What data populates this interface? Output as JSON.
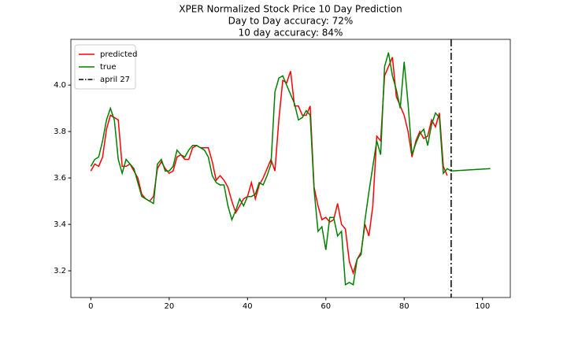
{
  "chart_data": {
    "type": "line",
    "title": "XPER Normalized Stock Price 10 Day Prediction",
    "subtitles": [
      "Day to Day accuracy: 72%",
      "10 day accuracy: 84%"
    ],
    "series": [
      {
        "name": "predicted",
        "color": "#ff0000",
        "x": [
          0,
          1,
          2,
          3,
          4,
          5,
          6,
          7,
          8,
          9,
          10,
          11,
          12,
          13,
          14,
          15,
          16,
          17,
          18,
          19,
          20,
          21,
          22,
          23,
          24,
          25,
          26,
          27,
          28,
          29,
          30,
          31,
          32,
          33,
          34,
          35,
          36,
          37,
          38,
          39,
          40,
          41,
          42,
          43,
          44,
          45,
          46,
          47,
          48,
          49,
          50,
          51,
          52,
          53,
          54,
          55,
          56,
          57,
          58,
          59,
          60,
          61,
          62,
          63,
          64,
          65,
          66,
          67,
          68,
          69,
          70,
          71,
          72,
          73,
          74,
          75,
          76,
          77,
          78,
          79,
          80,
          81,
          82,
          83,
          84,
          85,
          86,
          87,
          88,
          89,
          90,
          91
        ],
        "values": [
          3.63,
          3.66,
          3.65,
          3.69,
          3.81,
          3.87,
          3.86,
          3.85,
          3.65,
          3.65,
          3.66,
          3.63,
          3.6,
          3.53,
          3.51,
          3.5,
          3.52,
          3.64,
          3.67,
          3.64,
          3.62,
          3.63,
          3.69,
          3.7,
          3.68,
          3.68,
          3.73,
          3.74,
          3.73,
          3.73,
          3.73,
          3.67,
          3.59,
          3.61,
          3.59,
          3.56,
          3.5,
          3.45,
          3.48,
          3.51,
          3.52,
          3.58,
          3.51,
          3.57,
          3.6,
          3.64,
          3.68,
          3.63,
          3.85,
          4.02,
          4.01,
          4.06,
          3.91,
          3.91,
          3.87,
          3.87,
          3.91,
          3.56,
          3.48,
          3.42,
          3.43,
          3.41,
          3.42,
          3.49,
          3.4,
          3.38,
          3.24,
          3.19,
          3.25,
          3.28,
          3.4,
          3.35,
          3.48,
          3.78,
          3.76,
          4.04,
          4.08,
          4.12,
          3.95,
          3.91,
          3.87,
          3.8,
          3.69,
          3.76,
          3.8,
          3.77,
          3.78,
          3.85,
          3.82,
          3.88,
          3.65,
          3.61
        ]
      },
      {
        "name": "true",
        "color": "#008000",
        "x": [
          0,
          1,
          2,
          3,
          4,
          5,
          6,
          7,
          8,
          9,
          10,
          11,
          12,
          13,
          14,
          15,
          16,
          17,
          18,
          19,
          20,
          21,
          22,
          23,
          24,
          25,
          26,
          27,
          28,
          29,
          30,
          31,
          32,
          33,
          34,
          35,
          36,
          37,
          38,
          39,
          40,
          41,
          42,
          43,
          44,
          45,
          46,
          47,
          48,
          49,
          50,
          51,
          52,
          53,
          54,
          55,
          56,
          57,
          58,
          59,
          60,
          61,
          62,
          63,
          64,
          65,
          66,
          67,
          68,
          69,
          70,
          71,
          72,
          73,
          74,
          75,
          76,
          77,
          78,
          79,
          80,
          81,
          82,
          83,
          84,
          85,
          86,
          87,
          88,
          89,
          90,
          91,
          92,
          102
        ],
        "values": [
          3.65,
          3.68,
          3.69,
          3.76,
          3.85,
          3.9,
          3.85,
          3.68,
          3.62,
          3.68,
          3.66,
          3.64,
          3.58,
          3.52,
          3.51,
          3.5,
          3.49,
          3.66,
          3.68,
          3.63,
          3.63,
          3.65,
          3.72,
          3.7,
          3.69,
          3.72,
          3.74,
          3.74,
          3.73,
          3.72,
          3.69,
          3.61,
          3.58,
          3.57,
          3.57,
          3.48,
          3.42,
          3.46,
          3.51,
          3.48,
          3.52,
          3.52,
          3.53,
          3.58,
          3.57,
          3.61,
          3.66,
          3.97,
          4.03,
          4.04,
          4.0,
          3.96,
          3.92,
          3.85,
          3.86,
          3.89,
          3.87,
          3.55,
          3.37,
          3.39,
          3.29,
          3.43,
          3.43,
          3.35,
          3.37,
          3.14,
          3.15,
          3.14,
          3.25,
          3.27,
          3.42,
          3.54,
          3.65,
          3.76,
          3.7,
          4.08,
          4.14,
          4.04,
          3.98,
          3.9,
          4.1,
          3.92,
          3.7,
          3.75,
          3.79,
          3.81,
          3.74,
          3.83,
          3.88,
          3.86,
          3.62,
          3.64,
          3.63,
          3.64
        ]
      }
    ],
    "vline": {
      "name": "april 27",
      "x": 92,
      "color": "#000000"
    },
    "xlim": [
      -5.1,
      107.1
    ],
    "xticks": [
      0,
      20,
      40,
      60,
      80,
      100
    ],
    "ylim": [
      3.085,
      4.197
    ],
    "yticks": [
      3.2,
      3.4,
      3.6,
      3.8,
      {
        "value": 4,
        "label": "4.0"
      }
    ],
    "legend": "upper left"
  }
}
